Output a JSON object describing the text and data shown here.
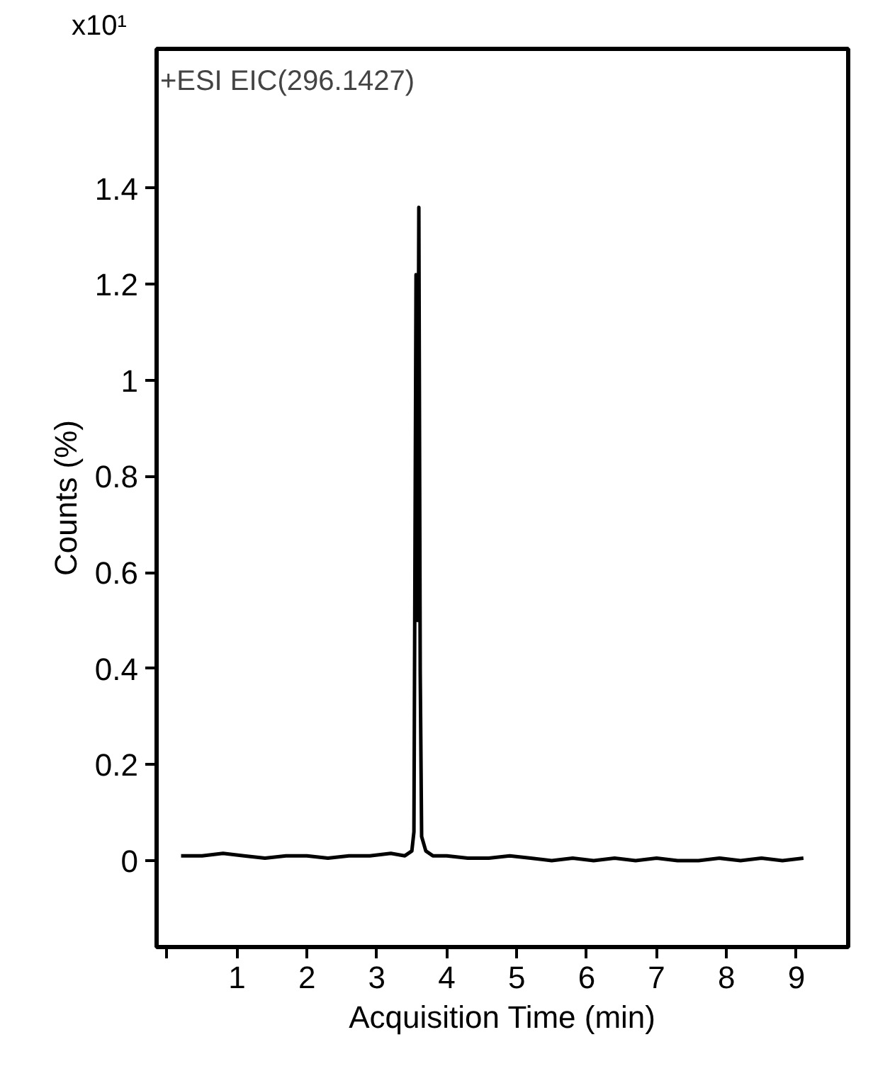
{
  "chart_data": {
    "type": "line",
    "title": "+ESI EIC(296.1427)",
    "xlabel": "Acquisition Time (min)",
    "ylabel": "Counts (%)",
    "annotations": [
      "x10¹"
    ],
    "x": [
      0.2,
      0.5,
      0.8,
      1.1,
      1.4,
      1.7,
      2.0,
      2.3,
      2.6,
      2.9,
      3.2,
      3.4,
      3.5,
      3.53,
      3.56,
      3.58,
      3.6,
      3.62,
      3.64,
      3.7,
      3.8,
      4.0,
      4.3,
      4.6,
      4.9,
      5.2,
      5.5,
      5.8,
      6.1,
      6.4,
      6.7,
      7.0,
      7.3,
      7.6,
      7.9,
      8.2,
      8.5,
      8.8,
      9.1
    ],
    "series": [
      {
        "color": "#000000",
        "values": [
          0.01,
          0.01,
          0.015,
          0.01,
          0.005,
          0.01,
          0.01,
          0.005,
          0.01,
          0.01,
          0.015,
          0.01,
          0.02,
          0.06,
          1.22,
          0.5,
          1.36,
          0.39,
          0.05,
          0.02,
          0.01,
          0.01,
          0.005,
          0.005,
          0.01,
          0.005,
          0.0,
          0.005,
          0.0,
          0.005,
          0.0,
          0.005,
          0.0,
          0.0,
          0.005,
          0.0,
          0.005,
          0.0,
          0.005
        ]
      }
    ],
    "xlim": [
      -0.15,
      9.74
    ],
    "ylim": [
      -0.18,
      1.69
    ],
    "xticks": [
      {
        "value": 0,
        "label": null
      },
      1,
      2,
      3,
      4,
      5,
      6,
      7,
      8,
      9
    ],
    "yticks": [
      0,
      0.2,
      0.4,
      0.6,
      0.8,
      1,
      1.2,
      1.4
    ],
    "grid": false,
    "marker": "none",
    "line_style": "solid"
  }
}
